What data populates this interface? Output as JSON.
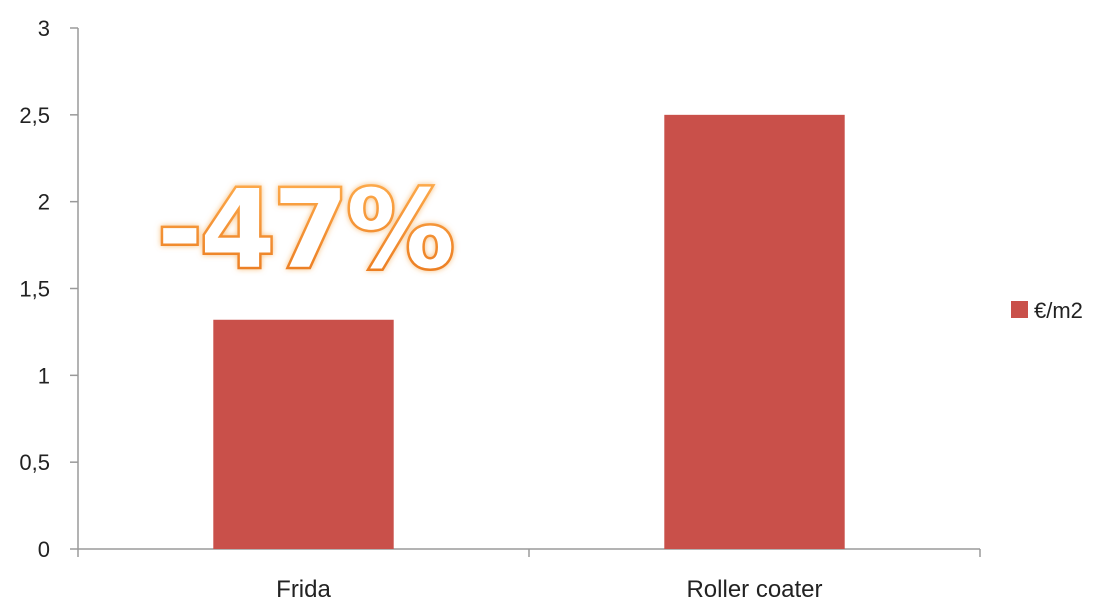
{
  "chart_data": {
    "type": "bar",
    "categories": [
      "Frida",
      "Roller coater"
    ],
    "series": [
      {
        "name": "€/m2",
        "values": [
          1.32,
          2.5
        ],
        "color": "#c9504a"
      }
    ],
    "ylim": [
      0,
      3
    ],
    "yticks": [
      "0",
      "0,5",
      "1",
      "1,5",
      "2",
      "2,5",
      "3"
    ],
    "ytick_values": [
      0,
      0.5,
      1,
      1.5,
      2,
      2.5,
      3
    ],
    "legend_position": "right",
    "grid": false,
    "annotation": {
      "text": "-47%",
      "fill_color": "#ffffff",
      "stroke_color": "#f08a2a"
    }
  }
}
